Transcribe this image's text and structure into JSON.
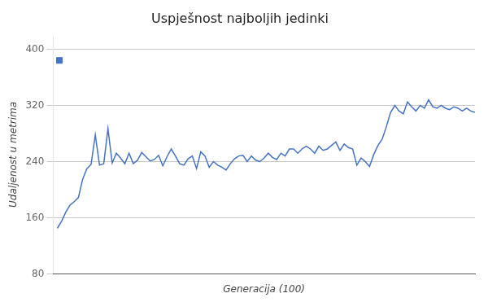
{
  "chart_data": {
    "type": "line",
    "title": "Uspješnost najboljih jedinki",
    "xlabel": "Generacija (100)",
    "ylabel": "Udaljenost u metrima",
    "xlim": [
      0,
      100
    ],
    "ylim": [
      80,
      420
    ],
    "yticks": [
      80,
      160,
      240,
      320,
      400
    ],
    "grid": "y",
    "tick_labels": "y",
    "series": [
      {
        "type": "line",
        "color": "#4472c4",
        "x": [
          1,
          2,
          3,
          4,
          5,
          6,
          7,
          8,
          9,
          10,
          11,
          12,
          13,
          14,
          15,
          16,
          17,
          18,
          19,
          20,
          21,
          22,
          23,
          24,
          25,
          26,
          27,
          28,
          29,
          30,
          31,
          32,
          33,
          34,
          35,
          36,
          37,
          38,
          39,
          40,
          41,
          42,
          43,
          44,
          45,
          46,
          47,
          48,
          49,
          50,
          51,
          52,
          53,
          54,
          55,
          56,
          57,
          58,
          59,
          60,
          61,
          62,
          63,
          64,
          65,
          66,
          67,
          68,
          69,
          70,
          71,
          72,
          73,
          74,
          75,
          76,
          77,
          78,
          79,
          80,
          81,
          82,
          83,
          84,
          85,
          86,
          87,
          88,
          89,
          90,
          91,
          92,
          93,
          94,
          95,
          96,
          97,
          98,
          99,
          100
        ],
        "values": [
          145,
          155,
          168,
          178,
          183,
          189,
          215,
          230,
          236,
          278,
          235,
          237,
          287,
          238,
          252,
          245,
          237,
          252,
          237,
          242,
          253,
          247,
          241,
          243,
          249,
          234,
          247,
          258,
          248,
          237,
          235,
          244,
          248,
          230,
          254,
          248,
          232,
          240,
          235,
          232,
          228,
          237,
          244,
          248,
          249,
          240,
          248,
          242,
          240,
          245,
          252,
          246,
          243,
          252,
          248,
          258,
          258,
          252,
          258,
          262,
          258,
          252,
          262,
          256,
          258,
          263,
          268,
          256,
          265,
          260,
          258,
          235,
          245,
          240,
          233,
          250,
          263,
          272,
          290,
          310,
          320,
          312,
          308,
          325,
          318,
          312,
          320,
          316,
          328,
          318,
          316,
          320,
          316,
          314,
          318,
          316,
          312,
          316,
          312,
          310
        ]
      },
      {
        "type": "scatter",
        "marker": "square",
        "color": "#4472c4",
        "x": [
          1.5
        ],
        "values": [
          384
        ]
      }
    ]
  }
}
